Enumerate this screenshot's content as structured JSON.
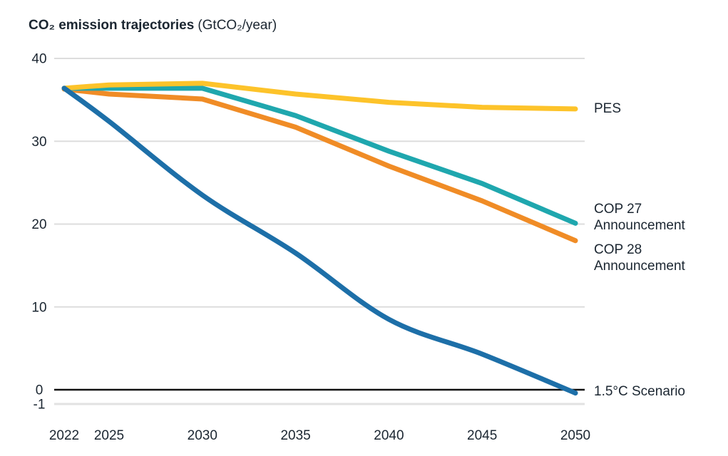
{
  "header": {
    "title": "CO₂ emission trajectories",
    "unit": "(GtCO₂/year)"
  },
  "chart_data": {
    "type": "line",
    "title": "CO₂ emission trajectories",
    "ylabel": "GtCO₂/year",
    "x": [
      2022,
      2025,
      2030,
      2035,
      2040,
      2045,
      2050
    ],
    "xtick_labels": [
      "2022",
      "2025",
      "2030",
      "2035",
      "2040",
      "2045",
      "2050"
    ],
    "ytick_values": [
      40,
      30,
      20,
      10,
      0,
      -1
    ],
    "ylim": [
      -1,
      40
    ],
    "grid": true,
    "legend_position": "right-annotations",
    "series": [
      {
        "name": "PES",
        "color": "#FDC32A",
        "smooth": false,
        "values": [
          36.4,
          36.8,
          37.0,
          35.7,
          34.7,
          34.1,
          33.9
        ],
        "label_lines": [
          "PES"
        ]
      },
      {
        "name": "COP 27 Announcement",
        "color": "#1FA7AE",
        "smooth": false,
        "values": [
          36.4,
          36.4,
          36.4,
          33.1,
          28.8,
          24.9,
          20.1
        ],
        "label_lines": [
          "COP 27",
          "Announcement"
        ]
      },
      {
        "name": "COP 28 Announcement",
        "color": "#F08C26",
        "smooth": false,
        "values": [
          36.3,
          35.7,
          35.1,
          31.7,
          27.0,
          22.8,
          18.0
        ],
        "label_lines": [
          "COP 28",
          "Announcement"
        ]
      },
      {
        "name": "1.5°C Scenario",
        "color": "#1D6FA8",
        "smooth": true,
        "values": [
          36.4,
          32.4,
          23.5,
          16.5,
          8.5,
          4.3,
          -0.4
        ],
        "label_lines": [
          "1.5°C Scenario"
        ]
      }
    ],
    "colors": {
      "grid": "#DDDDDD",
      "minus_one_grid": "#E2E2E2",
      "zero_line": "#111111",
      "text": "#1B2631"
    }
  }
}
